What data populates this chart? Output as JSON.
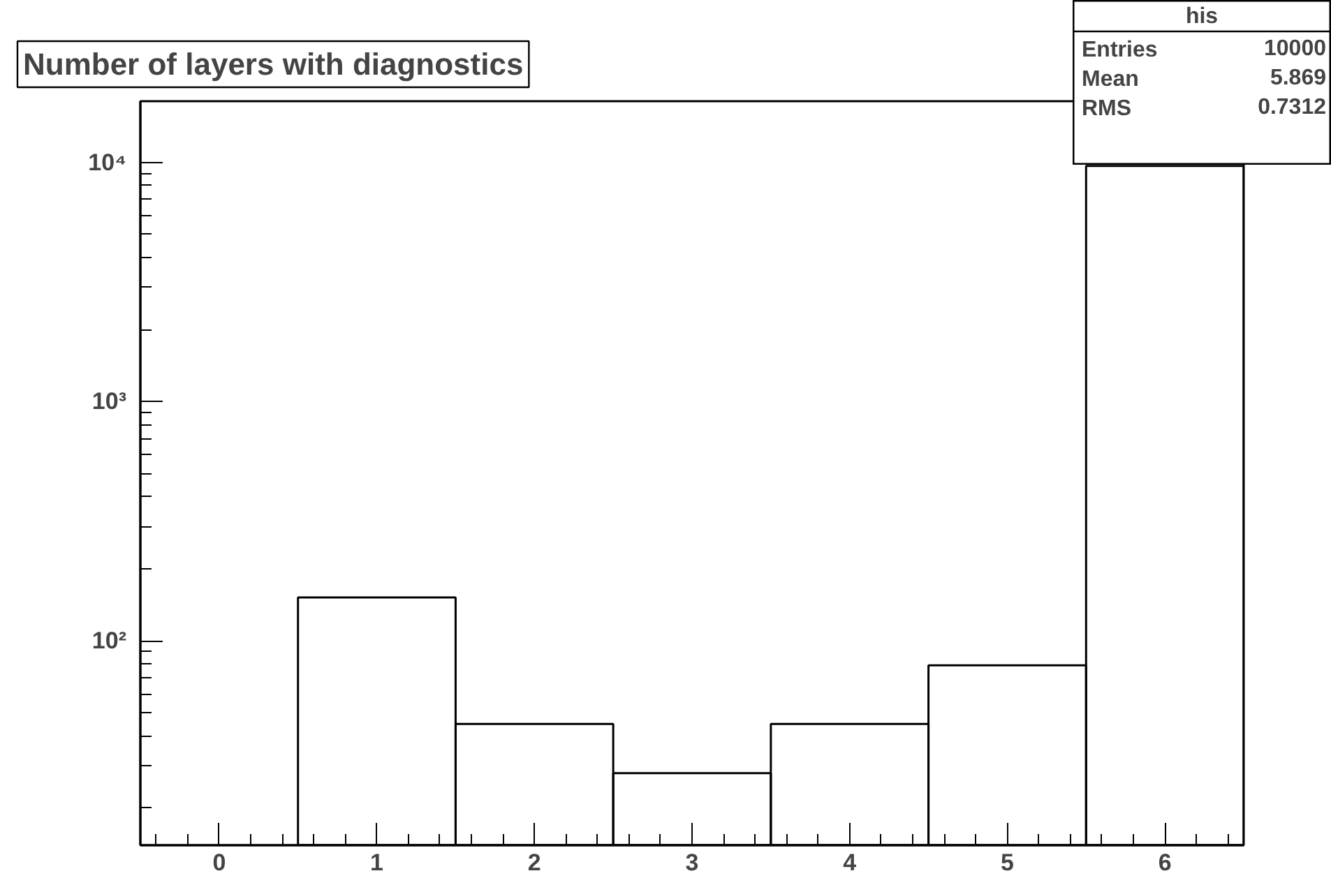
{
  "chart_data": {
    "type": "histogram",
    "title": "Number of layers with diagnostics",
    "bins": [
      -0.5,
      0.5,
      1.5,
      2.5,
      3.5,
      4.5,
      5.5,
      6.5
    ],
    "values": [
      null,
      152,
      45,
      28,
      45,
      79,
      9650
    ],
    "color": "#000000",
    "log": "y",
    "grid": false,
    "xlim": [
      -0.5,
      6.5
    ],
    "xticks": [
      0,
      1,
      2,
      3,
      4,
      5,
      6
    ],
    "ylim": [
      14,
      18000
    ],
    "yticks": [
      {
        "value": 100,
        "label": "10²"
      },
      {
        "value": 1000,
        "label": "10³"
      },
      {
        "value": 10000,
        "label": "10⁴"
      }
    ],
    "annotations": [
      "his",
      "Entries",
      "10000",
      "Mean",
      "5.869",
      "RMS",
      "0.7312"
    ]
  }
}
